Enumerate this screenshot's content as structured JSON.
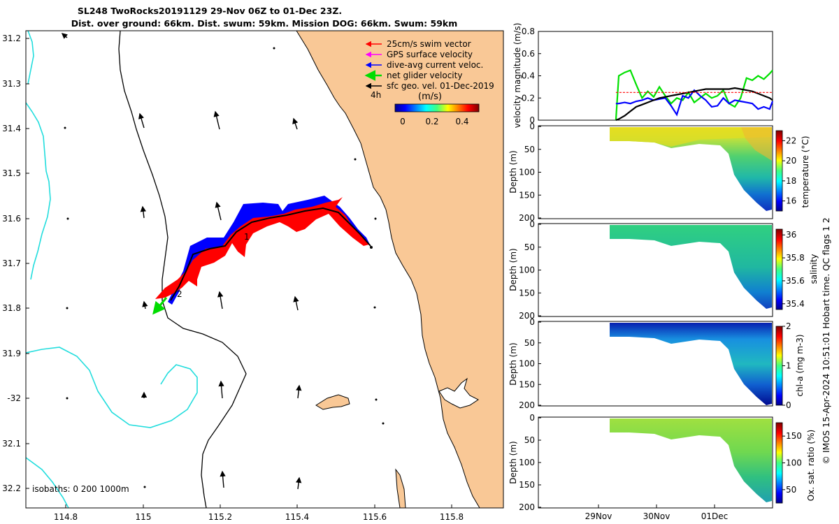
{
  "header": {
    "title_line1": "SL248 TwoRocks20191129 29-Nov 06Z to 01-Dec 23Z.",
    "title_line2": "Dist. over ground: 66km. Dist. swum: 59km. Mission DOG: 66km. Swum: 59km"
  },
  "map": {
    "lon_ticks": [
      "114.8",
      "115",
      "115.2",
      "115.4",
      "115.6",
      "115.8"
    ],
    "lat_ticks": [
      "31.2",
      "31.3",
      "31.4",
      "31.5",
      "31.6",
      "31.7",
      "31.8",
      "31.9",
      "-32",
      "32.1",
      "32.2"
    ],
    "isobaths_label": "isobaths: 0   200  1000m",
    "waypoint_labels": [
      "1",
      "2"
    ],
    "legend": {
      "items": [
        {
          "label": "25cm/s swim vector",
          "color": "#ff0000"
        },
        {
          "label": "GPS surface velocity",
          "color": "#ff00ff"
        },
        {
          "label": "dive-avg current veloc.",
          "color": "#0000ff"
        },
        {
          "label": "net glider velocity",
          "color": "#00dd00"
        },
        {
          "label": "sfc geo. vel. 01-Dec-2019",
          "color": "#000000"
        }
      ],
      "interval_label": "4h",
      "colorbar_title": "(m/s)",
      "colorbar_ticks": [
        "0",
        "0.2",
        "0.4"
      ]
    },
    "colors": {
      "land": "#f9c896",
      "isobath_0": "#000000",
      "isobath_200_1000": "#22dddd",
      "track_blue": "#0000ff",
      "track_red": "#ff0000"
    }
  },
  "chart_data": [
    {
      "type": "line",
      "ylabel": "velocity magnitude (m/s)",
      "ylim": [
        0,
        0.8
      ],
      "y_ticks": [
        "0",
        "0.2",
        "0.4",
        "0.6",
        "0.8"
      ],
      "x_ticks": [
        "29Nov",
        "30Nov",
        "01Dec"
      ],
      "x": [
        0.25,
        0.3,
        0.4,
        0.5,
        0.6,
        0.7,
        0.8,
        0.9,
        1.0,
        1.1,
        1.2,
        1.3,
        1.4,
        1.5,
        1.6,
        1.7,
        1.8,
        1.9,
        2.0,
        2.1,
        2.2,
        2.3,
        2.4,
        2.5,
        2.6,
        2.7,
        2.8,
        2.9,
        3.0
      ],
      "series": [
        {
          "color": "#00e000",
          "values": [
            0.0,
            0.4,
            0.43,
            0.45,
            0.32,
            0.2,
            0.26,
            0.21,
            0.3,
            0.22,
            0.15,
            0.2,
            0.18,
            0.25,
            0.16,
            0.2,
            0.24,
            0.2,
            0.22,
            0.27,
            0.15,
            0.12,
            0.2,
            0.38,
            0.36,
            0.4,
            0.37,
            0.42,
            0.45
          ]
        },
        {
          "color": "#0000ff",
          "values": [
            0.15,
            0.15,
            0.16,
            0.15,
            0.17,
            0.18,
            0.2,
            0.18,
            0.19,
            0.2,
            0.13,
            0.05,
            0.22,
            0.2,
            0.27,
            0.22,
            0.18,
            0.12,
            0.13,
            0.2,
            0.15,
            0.18,
            0.17,
            0.16,
            0.15,
            0.1,
            0.12,
            0.1,
            0.17
          ]
        },
        {
          "color": "#000000",
          "values": [
            0.0,
            0.01,
            0.04,
            0.08,
            0.12,
            0.14,
            0.16,
            0.18,
            0.2,
            0.21,
            0.22,
            0.23,
            0.24,
            0.25,
            0.26,
            0.27,
            0.28,
            0.28,
            0.28,
            0.28,
            0.28,
            0.29,
            0.28,
            0.27,
            0.26,
            0.24,
            0.22,
            0.2,
            0.18
          ]
        },
        {
          "color": "#ff0000",
          "values": [
            0.25,
            0.25,
            0.25,
            0.25,
            0.25,
            0.25,
            0.25,
            0.25,
            0.25,
            0.25,
            0.25,
            0.25,
            0.25,
            0.25,
            0.25,
            0.25,
            0.25,
            0.25,
            0.25,
            0.25,
            0.25,
            0.25,
            0.25,
            0.25,
            0.25,
            0.25,
            0.25,
            0.25,
            0.25
          ]
        }
      ]
    },
    {
      "type": "heatmap",
      "ylabel": "Depth (m)",
      "y_ticks": [
        "0",
        "50",
        "100",
        "150",
        "200"
      ],
      "colorbar_label": "temperature (°C)",
      "colorbar_ticks": [
        "16",
        "18",
        "20",
        "22"
      ],
      "colorbar_range": [
        15,
        23
      ]
    },
    {
      "type": "heatmap",
      "ylabel": "Depth (m)",
      "y_ticks": [
        "0",
        "50",
        "100",
        "150",
        "200"
      ],
      "colorbar_label": "salinity",
      "colorbar_ticks": [
        "35.4",
        "35.6",
        "35.8",
        "36"
      ],
      "colorbar_range": [
        35.35,
        36.05
      ]
    },
    {
      "type": "heatmap",
      "ylabel": "Depth (m)",
      "y_ticks": [
        "0",
        "50",
        "100",
        "150",
        "200"
      ],
      "colorbar_label": "chl-a (mg m-3)",
      "colorbar_ticks": [
        "0",
        "1",
        "2"
      ],
      "colorbar_range": [
        0,
        2
      ]
    },
    {
      "type": "heatmap",
      "ylabel": "Depth (m)",
      "y_ticks": [
        "0",
        "50",
        "100",
        "150",
        "200"
      ],
      "colorbar_label": "Ox. sat. ratio (%)",
      "colorbar_ticks": [
        "50",
        "100",
        "150"
      ],
      "colorbar_range": [
        25,
        175
      ]
    }
  ],
  "side_note": "© IMOS 15-Apr-2024 10:51:01 Hobart time. QC flags 1  2"
}
